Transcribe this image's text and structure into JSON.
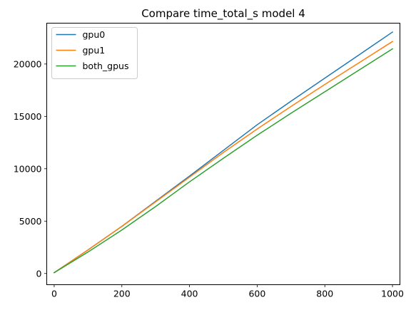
{
  "chart_data": {
    "type": "line",
    "title": "Compare time_total_s model 4",
    "xlabel": "",
    "ylabel": "",
    "xlim": [
      -22,
      1022
    ],
    "ylim": [
      -1070,
      23900
    ],
    "xticks": [
      0,
      200,
      400,
      600,
      800,
      1000
    ],
    "yticks": [
      0,
      5000,
      10000,
      15000,
      20000
    ],
    "grid": false,
    "legend_position": "top-left",
    "series": [
      {
        "name": "gpu0",
        "color": "#1f77b4",
        "x": [
          0,
          100,
          200,
          300,
          400,
          500,
          600,
          700,
          800,
          900,
          1000
        ],
        "y": [
          80,
          2250,
          4500,
          6900,
          9300,
          11750,
          14200,
          16450,
          18650,
          20850,
          23050
        ]
      },
      {
        "name": "gpu1",
        "color": "#ff7f0e",
        "x": [
          0,
          100,
          200,
          300,
          400,
          500,
          600,
          700,
          800,
          900,
          1000
        ],
        "y": [
          80,
          2250,
          4500,
          6850,
          9200,
          11550,
          13800,
          15950,
          18050,
          20100,
          22150
        ]
      },
      {
        "name": "both_gpus",
        "color": "#2ca02c",
        "x": [
          0,
          100,
          200,
          300,
          400,
          500,
          600,
          700,
          800,
          900,
          1000
        ],
        "y": [
          80,
          2050,
          4150,
          6400,
          8750,
          11000,
          13200,
          15300,
          17350,
          19400,
          21450
        ]
      }
    ]
  }
}
